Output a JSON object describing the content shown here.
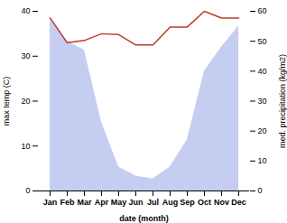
{
  "chart_data": {
    "type": "line",
    "categories": [
      "Jan",
      "Feb",
      "Mar",
      "Apr",
      "May",
      "Jun",
      "Jul",
      "Aug",
      "Sep",
      "Oct",
      "Nov",
      "Dec"
    ],
    "series": [
      {
        "type": "area",
        "axis": "y2",
        "color": "#c5cdf0",
        "values": [
          57,
          50,
          47,
          23,
          8,
          5,
          4,
          8,
          17,
          40,
          48,
          55
        ]
      },
      {
        "type": "line",
        "color": "#c0392b",
        "values": [
          38.5,
          33.0,
          33.5,
          35.0,
          34.8,
          32.5,
          32.5,
          36.5,
          36.5,
          40.0,
          38.5,
          38.5
        ]
      }
    ],
    "xlabel": "date (month)",
    "ylabel": "max temp (C)",
    "y2label": "med. precipitation (kg/m2)",
    "ylim": [
      0,
      40
    ],
    "yticks": [
      0,
      10,
      20,
      30,
      40
    ],
    "y2lim": [
      0,
      60
    ],
    "y2ticks": [
      0,
      10,
      20,
      30,
      40,
      50,
      60
    ]
  }
}
